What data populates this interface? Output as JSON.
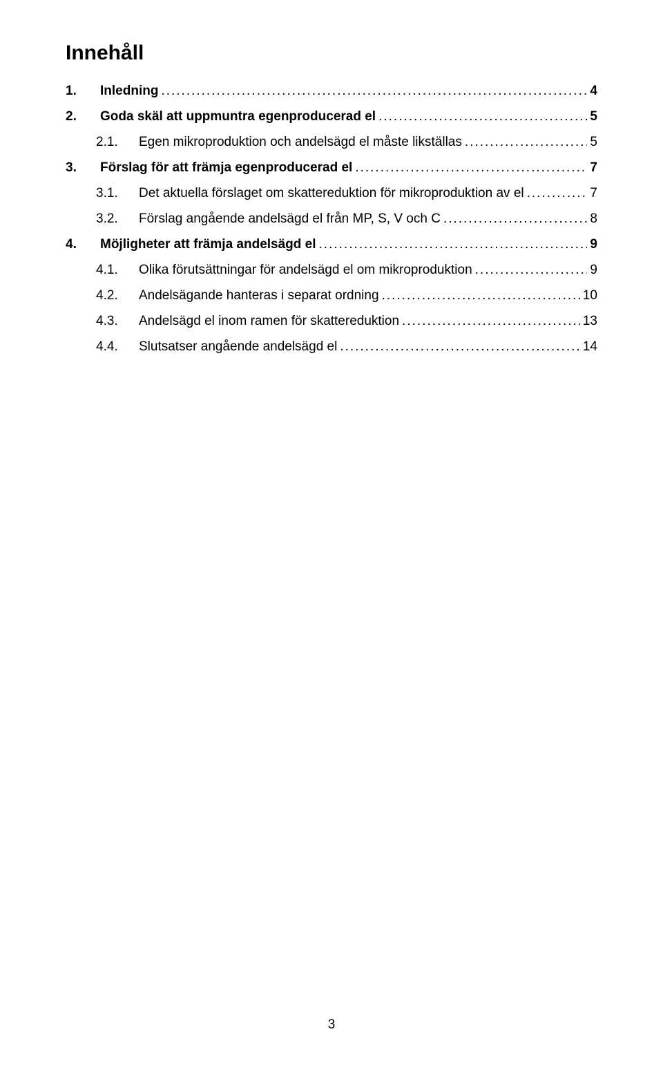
{
  "heading": "Innehåll",
  "pageNumber": "3",
  "toc": [
    {
      "level": 1,
      "num": "1.",
      "title": "Inledning",
      "page": "4"
    },
    {
      "level": 1,
      "num": "2.",
      "title": "Goda skäl att uppmuntra egenproducerad el",
      "page": "5"
    },
    {
      "level": 2,
      "num": "2.1.",
      "title": "Egen mikroproduktion och andelsägd el måste likställas",
      "page": "5"
    },
    {
      "level": 1,
      "num": "3.",
      "title": "Förslag för att främja egenproducerad el",
      "page": "7"
    },
    {
      "level": 2,
      "num": "3.1.",
      "title": "Det aktuella förslaget om skattereduktion för mikroproduktion av el",
      "page": "7"
    },
    {
      "level": 2,
      "num": "3.2.",
      "title": "Förslag angående andelsägd el från MP, S, V och C",
      "page": "8"
    },
    {
      "level": 1,
      "num": "4.",
      "title": "Möjligheter att främja andelsägd el",
      "page": "9"
    },
    {
      "level": 2,
      "num": "4.1.",
      "title": "Olika förutsättningar för andelsägd el om mikroproduktion",
      "page": "9"
    },
    {
      "level": 2,
      "num": "4.2.",
      "title": "Andelsägande hanteras i separat ordning",
      "page": "10"
    },
    {
      "level": 2,
      "num": "4.3.",
      "title": "Andelsägd el inom ramen för skattereduktion",
      "page": "13"
    },
    {
      "level": 2,
      "num": "4.4.",
      "title": "Slutsatser angående andelsägd el",
      "page": "14"
    }
  ]
}
